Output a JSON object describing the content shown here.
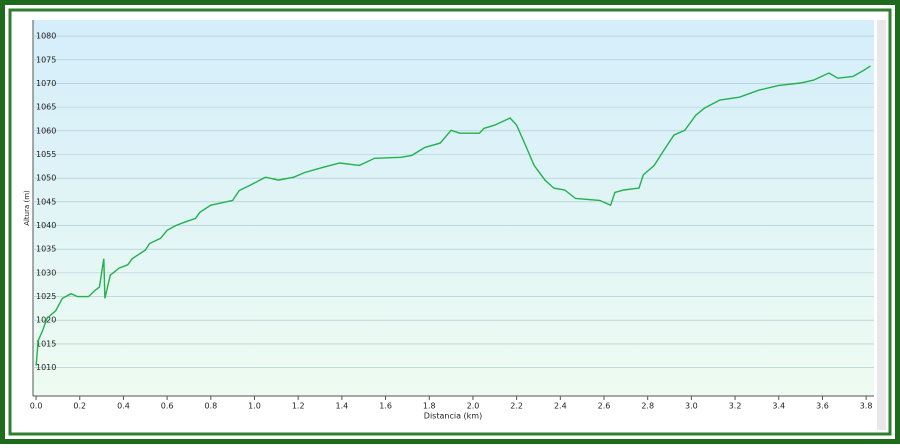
{
  "chart_data": {
    "type": "line",
    "x_label": "Distancia  (km)",
    "y_label": "Altura (m)",
    "series": [
      {
        "name": "Altura",
        "color": "#22b14c",
        "x": [
          0,
          0.01,
          0.03,
          0.05,
          0.09,
          0.12,
          0.16,
          0.19,
          0.24,
          0.27,
          0.29,
          0.31,
          0.315,
          0.34,
          0.38,
          0.42,
          0.44,
          0.5,
          0.52,
          0.57,
          0.6,
          0.64,
          0.68,
          0.73,
          0.75,
          0.8,
          0.84,
          0.9,
          0.93,
          0.98,
          1.05,
          1.11,
          1.18,
          1.23,
          1.3,
          1.39,
          1.48,
          1.55,
          1.67,
          1.72,
          1.78,
          1.85,
          1.9,
          1.94,
          2.03,
          2.05,
          2.1,
          2.17,
          2.2,
          2.24,
          2.28,
          2.33,
          2.37,
          2.42,
          2.47,
          2.58,
          2.63,
          2.65,
          2.69,
          2.76,
          2.78,
          2.83,
          2.88,
          2.92,
          2.97,
          3.02,
          3.06,
          3.13,
          3.22,
          3.31,
          3.4,
          3.5,
          3.56,
          3.63,
          3.67,
          3.74,
          3.79,
          3.82
        ],
        "values": [
          1010.4,
          1015.7,
          1017.8,
          1020.4,
          1022,
          1024.6,
          1025.6,
          1025,
          1025,
          1026.3,
          1027,
          1033,
          1024.6,
          1029.5,
          1031,
          1031.7,
          1033,
          1034.8,
          1036.2,
          1037.3,
          1039,
          1040,
          1040.7,
          1041.5,
          1042.8,
          1044.3,
          1044.7,
          1045.3,
          1047.4,
          1048.5,
          1050.2,
          1049.6,
          1050.2,
          1051.2,
          1052.1,
          1053.2,
          1052.7,
          1054.2,
          1054.4,
          1054.8,
          1056.5,
          1057.4,
          1060.1,
          1059.5,
          1059.5,
          1060.5,
          1061.2,
          1062.7,
          1061.2,
          1057,
          1052.7,
          1049.6,
          1047.9,
          1047.5,
          1045.7,
          1045.3,
          1044.3,
          1047,
          1047.5,
          1047.9,
          1050.7,
          1052.7,
          1056.3,
          1059.1,
          1060.1,
          1063.3,
          1064.8,
          1066.5,
          1067.1,
          1068.6,
          1069.6,
          1070.1,
          1070.7,
          1072.2,
          1071.1,
          1071.5,
          1072.8,
          1073.7
        ]
      }
    ],
    "xlim": [
      -0.014,
      3.836
    ],
    "xticks": [
      {
        "value": 0,
        "label": "0.0"
      },
      0.2,
      0.4,
      0.6,
      0.8,
      {
        "value": 1,
        "label": "1.0"
      },
      1.2,
      1.4,
      1.6,
      1.8,
      {
        "value": 2,
        "label": "2.0"
      },
      2.2,
      2.4,
      2.6,
      2.8,
      {
        "value": 3,
        "label": "3.0"
      },
      3.2,
      3.4,
      3.6,
      3.8
    ],
    "ylim": [
      1004,
      1083.4
    ],
    "yticks": [
      1010,
      1015,
      1020,
      1025,
      1030,
      1035,
      1040,
      1045,
      1050,
      1055,
      1060,
      1065,
      1070,
      1075,
      1080
    ],
    "grid": true
  }
}
